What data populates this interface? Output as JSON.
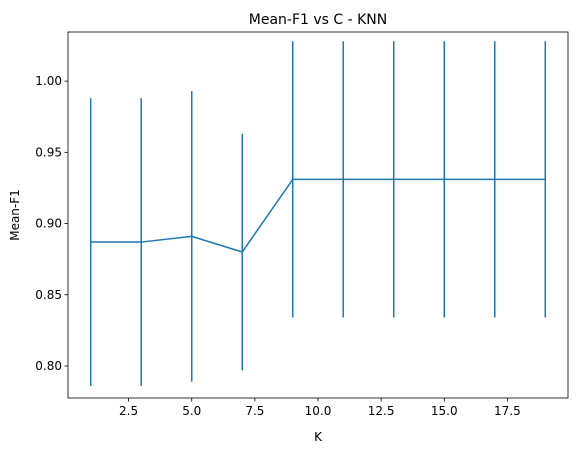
{
  "chart_data": {
    "type": "line",
    "title": "Mean-F1 vs C - KNN",
    "xlabel": "K",
    "ylabel": "Mean-F1",
    "xlim": [
      0.1,
      19.9
    ],
    "ylim": [
      0.7775,
      1.0345
    ],
    "x_ticks": [
      2.5,
      5.0,
      7.5,
      10.0,
      12.5,
      15.0,
      17.5
    ],
    "x_tick_labels": [
      "2.5",
      "5.0",
      "7.5",
      "10.0",
      "12.5",
      "15.0",
      "17.5"
    ],
    "y_ticks": [
      0.8,
      0.85,
      0.9,
      0.95,
      1.0
    ],
    "y_tick_labels": [
      "0.80",
      "0.85",
      "0.90",
      "0.95",
      "1.00"
    ],
    "grid": false,
    "legend": "none",
    "series": [
      {
        "x": [
          1,
          3,
          5,
          7,
          9,
          11,
          13,
          15,
          17,
          19
        ],
        "y": [
          0.887,
          0.887,
          0.891,
          0.88,
          0.931,
          0.931,
          0.931,
          0.931,
          0.931,
          0.931
        ],
        "yerr": [
          0.101,
          0.101,
          0.102,
          0.083,
          0.097,
          0.097,
          0.097,
          0.097,
          0.097,
          0.097
        ],
        "color": "#1f77b4"
      }
    ]
  }
}
